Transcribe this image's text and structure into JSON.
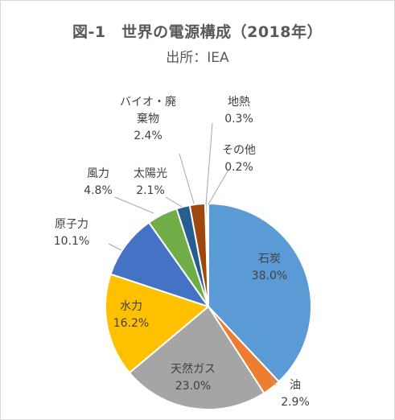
{
  "chart_data": {
    "type": "pie",
    "title": "図-1　世界の電源構成（2018年）",
    "subtitle": "出所：IEA",
    "slices": [
      {
        "label": "石炭",
        "percent_label": "38.0%",
        "value": 38.0,
        "color": "#5b9bd5",
        "label_position": "inside",
        "label_color": "#404040"
      },
      {
        "label": "油",
        "percent_label": "2.9%",
        "value": 2.9,
        "color": "#ed7d31",
        "label_position": "outside",
        "label_color": "#404040"
      },
      {
        "label": "天然ガス",
        "percent_label": "23.0%",
        "value": 23.0,
        "color": "#a5a5a5",
        "label_position": "inside",
        "label_color": "#404040"
      },
      {
        "label": "水力",
        "percent_label": "16.2%",
        "value": 16.2,
        "color": "#ffc000",
        "label_position": "inside",
        "label_color": "#404040"
      },
      {
        "label": "原子力",
        "percent_label": "10.1%",
        "value": 10.1,
        "color": "#4472c4",
        "label_position": "outside",
        "label_color": "#404040"
      },
      {
        "label": "風力",
        "percent_label": "4.8%",
        "value": 4.8,
        "color": "#70ad47",
        "label_position": "outside",
        "label_color": "#404040"
      },
      {
        "label": "太陽光",
        "percent_label": "2.1%",
        "value": 2.1,
        "color": "#255e91",
        "label_position": "outside",
        "label_color": "#404040"
      },
      {
        "label": "バイオ・廃\n棄物",
        "percent_label": "2.4%",
        "value": 2.4,
        "color": "#9e480e",
        "label_position": "outside",
        "label_color": "#404040"
      },
      {
        "label": "地熱",
        "percent_label": "0.3%",
        "value": 0.3,
        "color": "#636363",
        "label_position": "outside",
        "label_color": "#404040"
      },
      {
        "label": "その他",
        "percent_label": "0.2%",
        "value": 0.2,
        "color": "#997300",
        "label_position": "outside",
        "label_color": "#404040"
      }
    ]
  }
}
